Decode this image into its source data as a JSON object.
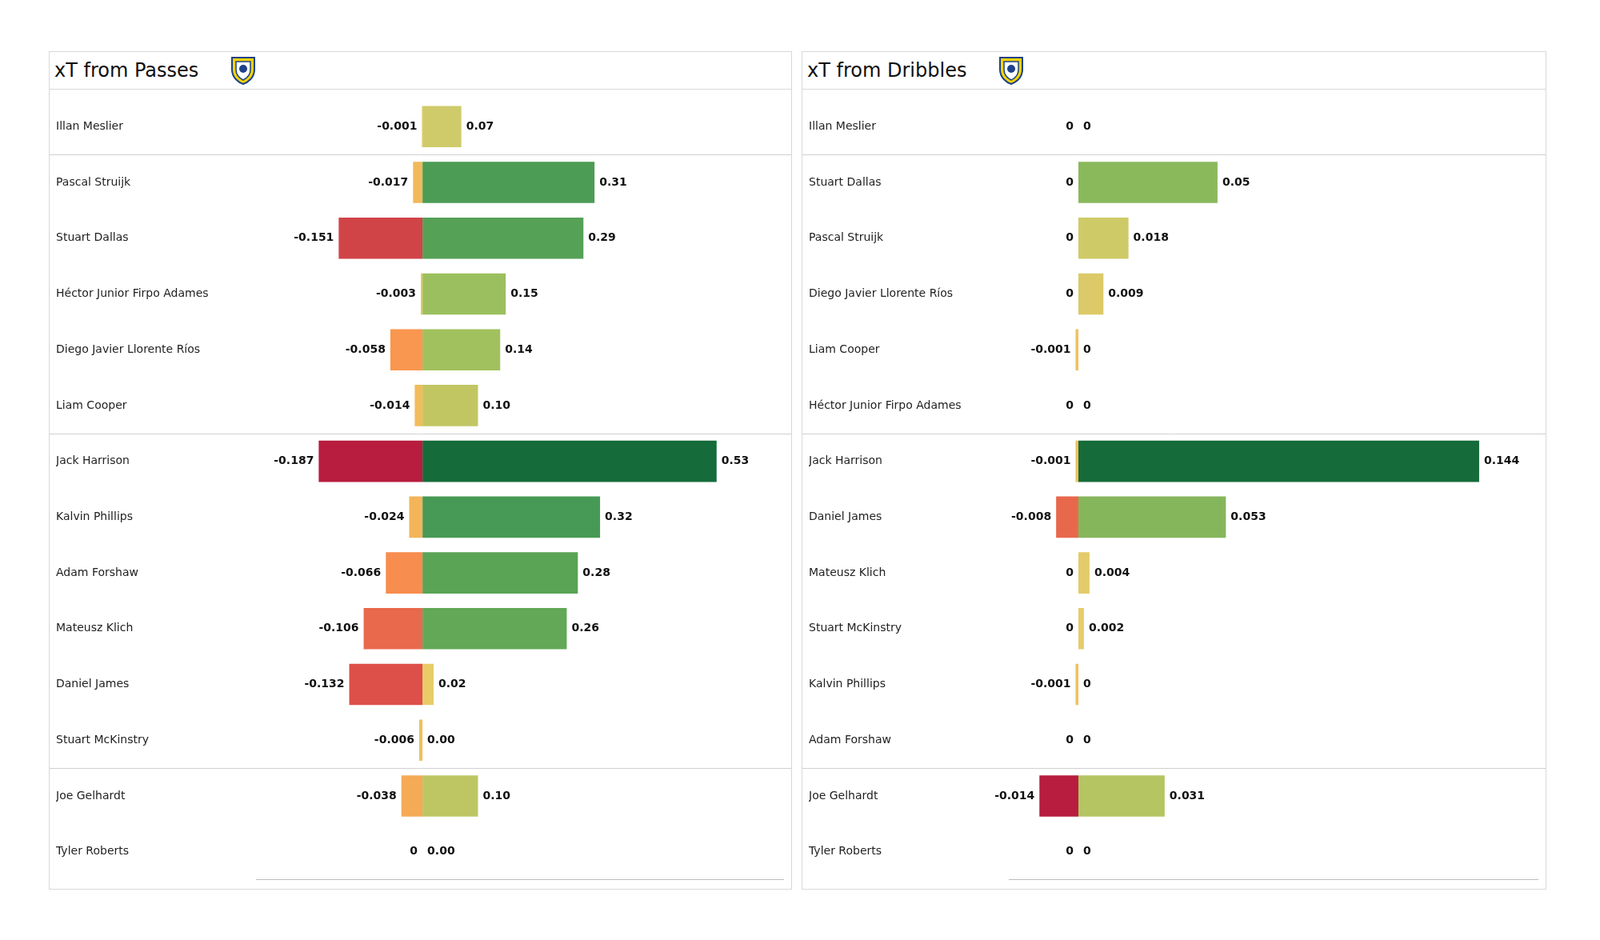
{
  "chart_data": [
    {
      "type": "bar",
      "title": "xT from Passes",
      "orientation": "horizontal",
      "categories": [
        "Illan Meslier",
        "Pascal Struijk",
        "Stuart Dallas",
        "Héctor Junior Firpo Adames",
        "Diego Javier Llorente Ríos",
        "Liam Cooper",
        "Jack Harrison",
        "Kalvin Phillips",
        "Adam Forshaw",
        "Mateusz Klich",
        "Daniel James",
        "Stuart McKinstry",
        "Joe Gelhardt",
        "Tyler Roberts"
      ],
      "series": [
        {
          "values": [
            -0.001,
            -0.017,
            -0.151,
            -0.003,
            -0.058,
            -0.014,
            -0.187,
            -0.024,
            -0.066,
            -0.106,
            -0.132,
            -0.006,
            -0.038,
            0
          ],
          "value_labels": [
            "-0.001",
            "-0.017",
            "-0.151",
            "-0.003",
            "-0.058",
            "-0.014",
            "-0.187",
            "-0.024",
            "-0.066",
            "-0.106",
            "-0.132",
            "-0.006",
            "-0.038",
            "0"
          ],
          "colors": [
            "#e9c95f",
            "#f0b95a",
            "#d04448",
            "#eec35e",
            "#f99650",
            "#f1bc5a",
            "#b81c3e",
            "#f3b45a",
            "#f78d4e",
            "#e8694c",
            "#dd5049",
            "#efc05c",
            "#f5aa55",
            "#e8d07a"
          ]
        },
        {
          "values": [
            0.07,
            0.31,
            0.29,
            0.15,
            0.14,
            0.1,
            0.53,
            0.32,
            0.28,
            0.26,
            0.02,
            0,
            0.1,
            0
          ],
          "value_labels": [
            "0.07",
            "0.31",
            "0.29",
            "0.15",
            "0.14",
            "0.10",
            "0.53",
            "0.32",
            "0.28",
            "0.26",
            "0.02",
            "0.00",
            "0.10",
            "0.00"
          ],
          "colors": [
            "#cfcb6a",
            "#4c9c55",
            "#55a156",
            "#9bbf5e",
            "#a1c15e",
            "#c1c663",
            "#156b3a",
            "#479a55",
            "#5aa456",
            "#62a857",
            "#e9cc68",
            "#e8cf6c",
            "#bec663",
            "#e8cf6c"
          ]
        }
      ],
      "xlim": [
        -0.3,
        0.65
      ],
      "xticks": [],
      "tick_labels": "y",
      "data_labels": true,
      "grid": false
    },
    {
      "type": "bar",
      "title": "xT from Dribbles",
      "orientation": "horizontal",
      "categories": [
        "Illan Meslier",
        "Stuart Dallas",
        "Pascal Struijk",
        "Diego Javier Llorente Ríos",
        "Liam Cooper",
        "Héctor Junior Firpo Adames",
        "Jack Harrison",
        "Daniel James",
        "Mateusz Klich",
        "Stuart McKinstry",
        "Kalvin Phillips",
        "Adam Forshaw",
        "Joe Gelhardt",
        "Tyler Roberts"
      ],
      "series": [
        {
          "values": [
            0,
            0,
            0,
            0,
            -0.001,
            0,
            -0.001,
            -0.008,
            0,
            0,
            -0.001,
            0,
            -0.014,
            0
          ],
          "value_labels": [
            "0",
            "0",
            "0",
            "0",
            "-0.001",
            "0",
            "-0.001",
            "-0.008",
            "0",
            "0",
            "-0.001",
            "0",
            "-0.014",
            "0"
          ],
          "colors": [
            "#e8d07a",
            "#e8d07a",
            "#e8d07a",
            "#e8d07a",
            "#f1c05c",
            "#e8d07a",
            "#f1c05c",
            "#e8684c",
            "#e8d07a",
            "#e8d07a",
            "#f1c05c",
            "#e8d07a",
            "#b81c3e",
            "#e8d07a"
          ]
        },
        {
          "values": [
            0,
            0.05,
            0.018,
            0.009,
            0,
            0,
            0.144,
            0.053,
            0.004,
            0.002,
            0,
            0,
            0.031,
            0
          ],
          "value_labels": [
            "0",
            "0.05",
            "0.018",
            "0.009",
            "0",
            "0",
            "0.144",
            "0.053",
            "0.004",
            "0.002",
            "0",
            "0",
            "0.031",
            "0"
          ],
          "colors": [
            "#e8cf6c",
            "#8ab95c",
            "#cfca68",
            "#dcc967",
            "#e8cf6c",
            "#e8cf6c",
            "#156b3a",
            "#86b65c",
            "#e3cb69",
            "#e6cc6a",
            "#e8cf6c",
            "#e8cf6c",
            "#b5c562",
            "#e8cf6c"
          ]
        }
      ],
      "xlim": [
        -0.025,
        0.165
      ],
      "xticks": [],
      "tick_labels": "y",
      "data_labels": true,
      "grid": false
    }
  ]
}
